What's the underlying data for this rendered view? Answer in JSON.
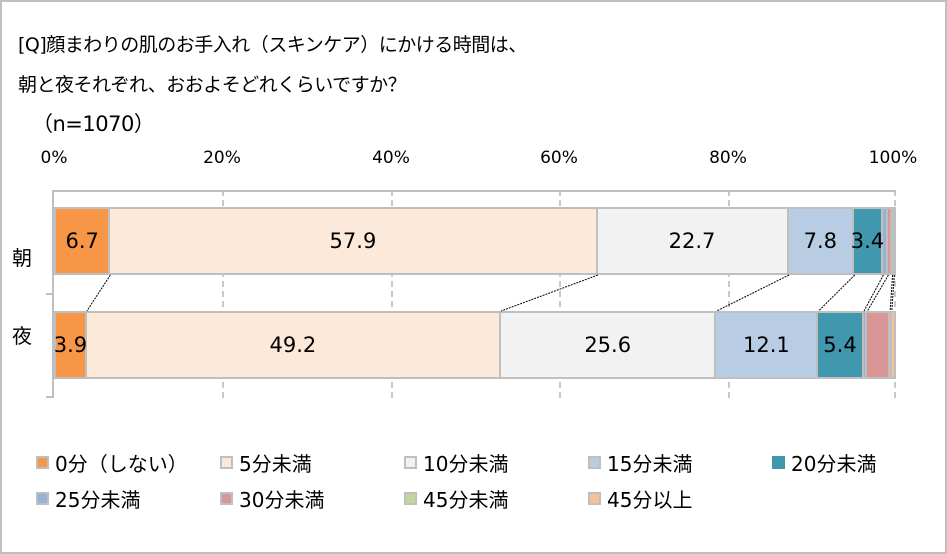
{
  "chart_data": {
    "type": "bar",
    "orientation": "horizontal-stacked-100",
    "title": "[Q]顔まわりの肌のお手入れ（スキンケア）にかける時間は、朝と夜それぞれ、おおよそどれくらいですか？",
    "subtitle": "（n=1070）",
    "title_lines": [
      "[Q]顔まわりの肌のお手入れ（スキンケア）にかける時間は、",
      "朝と夜それぞれ、おおよそどれくらいですか？",
      "（n=1070）"
    ],
    "xlabel": "",
    "ylabel": "",
    "xlim": [
      0,
      100
    ],
    "x_ticks": [
      "0%",
      "20%",
      "40%",
      "60%",
      "80%",
      "100%"
    ],
    "grid": true,
    "legend_position": "bottom",
    "categories": [
      "朝",
      "夜"
    ],
    "series": [
      {
        "name": "0分（しない）",
        "color": "#f79646",
        "values": [
          6.7,
          3.9
        ],
        "labels": [
          "6.7",
          "3.9"
        ]
      },
      {
        "name": "5分未満",
        "color": "#fde9d9",
        "values": [
          57.9,
          49.2
        ],
        "labels": [
          "57.9",
          "49.2"
        ]
      },
      {
        "name": "10分未満",
        "color": "#f2f2f2",
        "values": [
          22.7,
          25.6
        ],
        "labels": [
          "22.7",
          "25.6"
        ]
      },
      {
        "name": "15分未満",
        "color": "#b8cce4",
        "values": [
          7.8,
          12.1
        ],
        "labels": [
          "7.8",
          "12.1"
        ]
      },
      {
        "name": "20分未満",
        "color": "#4197ae",
        "values": [
          3.4,
          5.4
        ],
        "labels": [
          "3.4",
          "5.4"
        ]
      },
      {
        "name": "25分未満",
        "color": "#95b3d7",
        "values": [
          0.6,
          0.4
        ],
        "labels": [
          "",
          ""
        ]
      },
      {
        "name": "30分未満",
        "color": "#da9694",
        "values": [
          0.5,
          2.7
        ],
        "labels": [
          "",
          ""
        ]
      },
      {
        "name": "45分未満",
        "color": "#c4d79b",
        "values": [
          0.2,
          0.2
        ],
        "labels": [
          "",
          ""
        ]
      },
      {
        "name": "45分以上",
        "color": "#fac090",
        "values": [
          0.2,
          0.5
        ],
        "labels": [
          "",
          ""
        ]
      }
    ]
  },
  "row_labels": {
    "morning": "朝",
    "night": "夜"
  }
}
